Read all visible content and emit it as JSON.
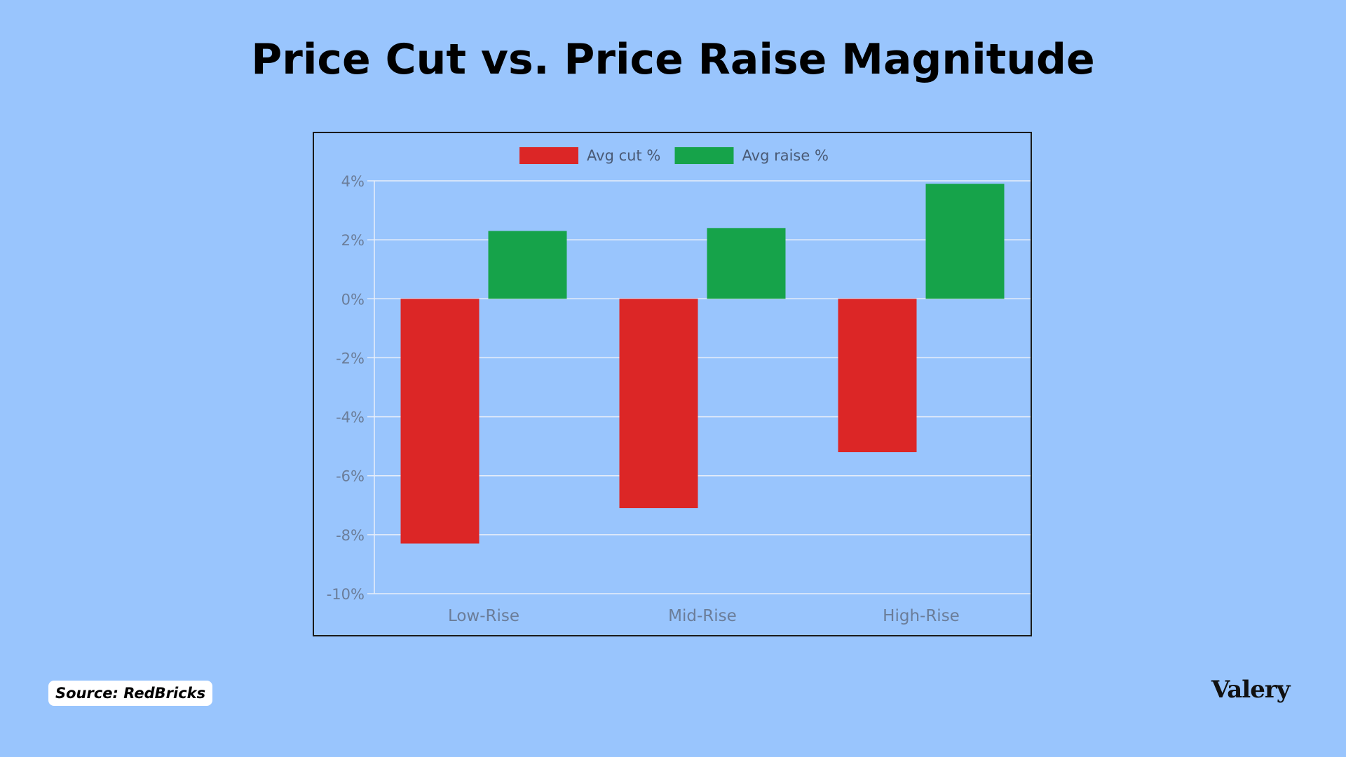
{
  "title": "Price Cut vs. Price Raise Magnitude",
  "source": "Source: RedBricks",
  "brand": "Valery",
  "chart_data": {
    "type": "bar",
    "categories": [
      "Low-Rise",
      "Mid-Rise",
      "High-Rise"
    ],
    "series": [
      {
        "name": "Avg cut %",
        "color": "#dc2626",
        "values": [
          -8.3,
          -7.1,
          -5.2
        ]
      },
      {
        "name": "Avg raise %",
        "color": "#16a34a",
        "values": [
          2.3,
          2.4,
          3.9
        ]
      }
    ],
    "ylim": [
      -10,
      4
    ],
    "yticks": [
      4,
      2,
      0,
      -2,
      -4,
      -6,
      -8,
      -10
    ],
    "ytick_labels": [
      "4%",
      "2%",
      "0%",
      "-2%",
      "-4%",
      "-6%",
      "-8%",
      "-10%"
    ],
    "xlabel": "",
    "ylabel": "",
    "grid": true,
    "legend": "top-center"
  }
}
